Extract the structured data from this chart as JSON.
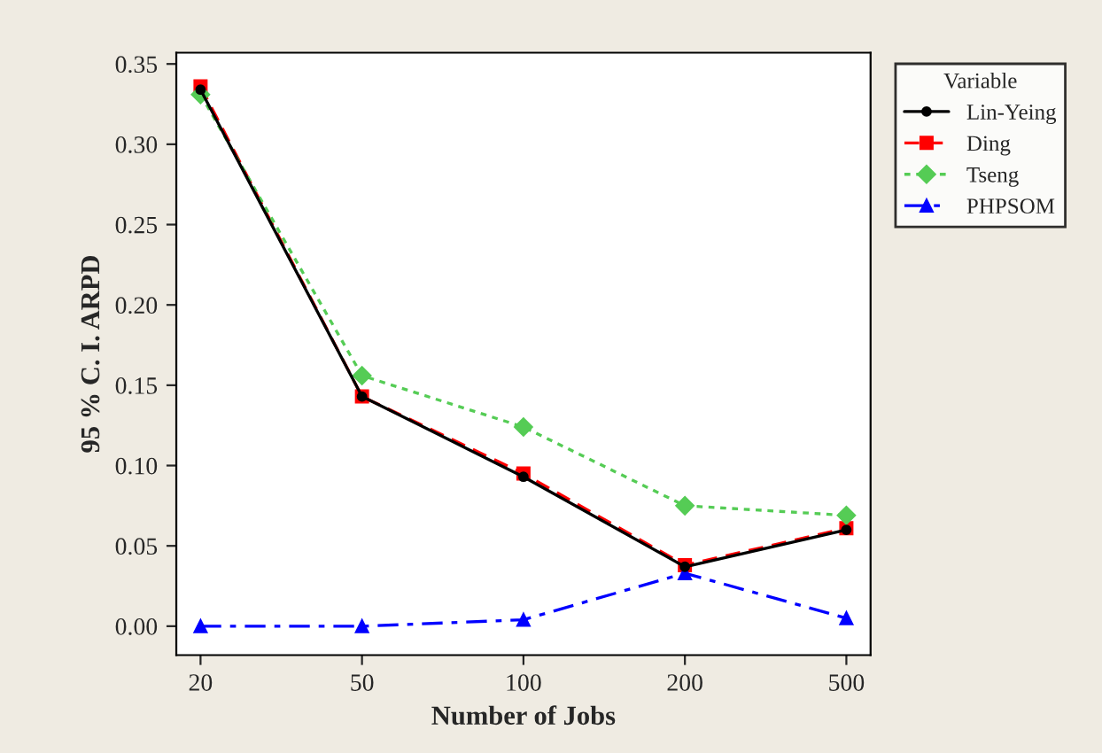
{
  "chart_data": {
    "type": "line",
    "xlabel": "Number of Jobs",
    "ylabel": "95 % C. I. ARPD",
    "legend_title": "Variable",
    "legend": "right",
    "categories": [
      "20",
      "50",
      "100",
      "200",
      "500"
    ],
    "ylim": [
      -0.018,
      0.357
    ],
    "yticks": [
      {
        "value": 0,
        "label": "0.00"
      },
      {
        "value": 0.05,
        "label": "0.05"
      },
      {
        "value": 0.1,
        "label": "0.10"
      },
      {
        "value": 0.15,
        "label": "0.15"
      },
      {
        "value": 0.2,
        "label": "0.20"
      },
      {
        "value": 0.25,
        "label": "0.25"
      },
      {
        "value": 0.3,
        "label": "0.30"
      },
      {
        "value": 0.35,
        "label": "0.35"
      }
    ],
    "grid": false,
    "series": [
      {
        "name": "Lin-Yeing",
        "color": "#000000",
        "marker": "circle",
        "line_style": "solid",
        "values": [
          0.334,
          0.143,
          0.093,
          0.037,
          0.06
        ]
      },
      {
        "name": "Ding",
        "color": "#ff0000",
        "marker": "square",
        "line_style": "dashed",
        "values": [
          0.336,
          0.143,
          0.095,
          0.038,
          0.061
        ]
      },
      {
        "name": "Tseng",
        "color": "#55cc55",
        "marker": "diamond",
        "line_style": "dotted",
        "values": [
          0.331,
          0.156,
          0.124,
          0.075,
          0.069
        ]
      },
      {
        "name": "PHPSOM",
        "color": "#0000ff",
        "marker": "triangle",
        "line_style": "dashdot",
        "values": [
          0.0,
          0.0,
          0.004,
          0.033,
          0.005
        ]
      }
    ]
  }
}
